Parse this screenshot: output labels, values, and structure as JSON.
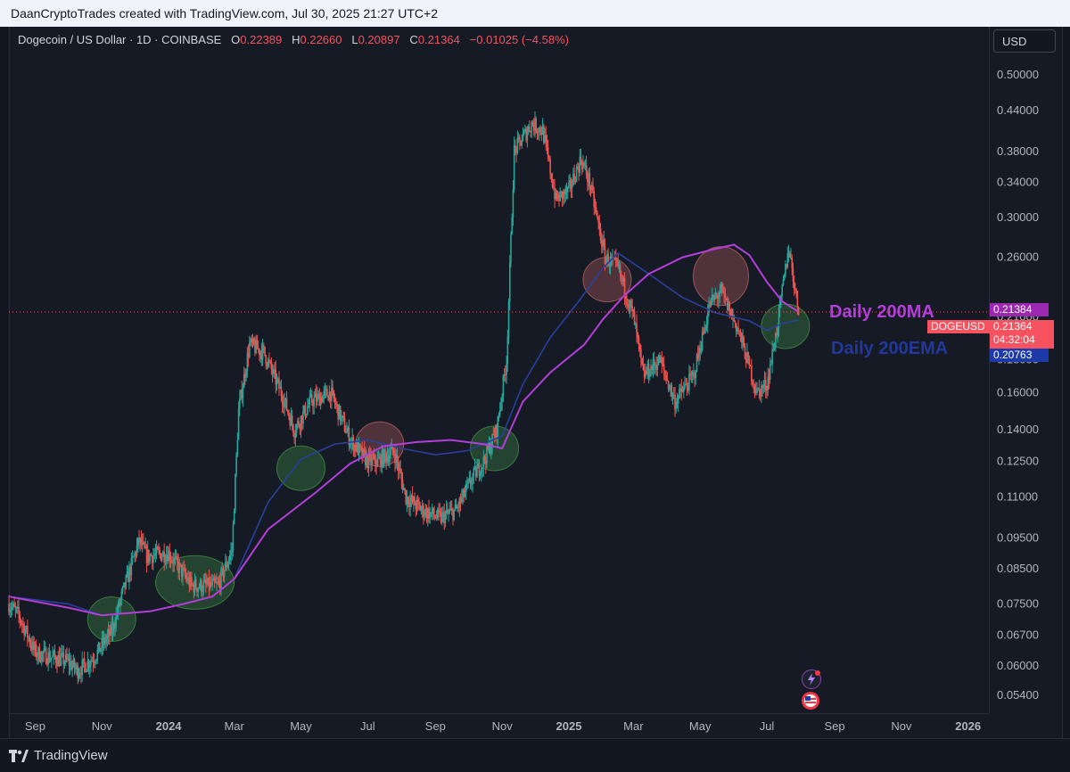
{
  "header": {
    "title": "DaanCryptoTrades created with TradingView.com, Jul 30, 2025 21:27 UTC+2"
  },
  "legend": {
    "symbol": "Dogecoin / US Dollar · 1D · COINBASE",
    "o_label": "O",
    "o_value": "0.22389",
    "h_label": "H",
    "h_value": "0.22660",
    "l_label": "L",
    "l_value": "0.20897",
    "c_label": "C",
    "c_value": "0.21364",
    "change": "−0.01025 (−4.58%)"
  },
  "currency_button": "USD",
  "annotations": {
    "ma_label": "Daily 200MA",
    "ema_label": "Daily 200EMA"
  },
  "price_tags": {
    "ma_value": "0.21384",
    "symbol_tag": "DOGEUSD",
    "last_price": "0.21364",
    "countdown": "04:32:04",
    "ema_value": "0.20763"
  },
  "branding": {
    "footer_logo": "TradingView"
  },
  "colors": {
    "up": "#26a69a",
    "down": "#ef5350",
    "ma": "#b33fd8",
    "ema": "#2a3f9e",
    "tag_ma": "#9c27b0",
    "tag_last": "#f7525f",
    "tag_ema": "#1c3aa9",
    "circle_green": "#4caf50",
    "circle_red": "#e57373"
  },
  "chart_data": {
    "type": "line",
    "title": "Dogecoin / US Dollar · 1D · COINBASE",
    "y_scale": "log",
    "ylim": [
      0.051,
      0.54
    ],
    "y_ticks": [
      0.054,
      0.06,
      0.067,
      0.075,
      0.085,
      0.095,
      0.11,
      0.125,
      0.14,
      0.16,
      0.18,
      0.21,
      0.26,
      0.3,
      0.34,
      0.38,
      0.44,
      0.5
    ],
    "y_tick_labels": [
      "0.05400",
      "0.06000",
      "0.06700",
      "0.07500",
      "0.08500",
      "0.09500",
      "0.11000",
      "0.12500",
      "0.14000",
      "0.16000",
      "0.18000",
      "0.21000",
      "0.26000",
      "0.30000",
      "0.34000",
      "0.38000",
      "0.44000",
      "0.50000"
    ],
    "x_ticks": [
      "2023-09-01",
      "2023-11-01",
      "2024-01-01",
      "2024-03-01",
      "2024-05-01",
      "2024-07-01",
      "2024-09-01",
      "2024-11-01",
      "2025-01-01",
      "2025-03-01",
      "2025-05-01",
      "2025-07-01",
      "2025-09-01",
      "2025-11-01",
      "2026-01-01"
    ],
    "x_tick_labels": [
      "Sep",
      "Nov",
      "2024",
      "Mar",
      "May",
      "Jul",
      "Sep",
      "Nov",
      "2025",
      "Mar",
      "May",
      "Jul",
      "Sep",
      "Nov",
      "2026"
    ],
    "x_range": [
      "2023-08-08",
      "2026-01-20"
    ],
    "series": [
      {
        "name": "DOGEUSD",
        "x": [
          "2023-08-08",
          "2023-08-17",
          "2023-09-01",
          "2023-09-15",
          "2023-10-01",
          "2023-10-10",
          "2023-10-25",
          "2023-11-10",
          "2023-11-20",
          "2023-12-05",
          "2023-12-12",
          "2024-01-01",
          "2024-01-22",
          "2024-02-15",
          "2024-02-28",
          "2024-03-05",
          "2024-03-15",
          "2024-03-28",
          "2024-04-13",
          "2024-04-25",
          "2024-05-10",
          "2024-05-28",
          "2024-06-15",
          "2024-07-01",
          "2024-07-10",
          "2024-07-25",
          "2024-08-05",
          "2024-08-20",
          "2024-09-05",
          "2024-09-20",
          "2024-10-05",
          "2024-10-15",
          "2024-10-27",
          "2024-11-05",
          "2024-11-12",
          "2024-11-28",
          "2024-12-08",
          "2024-12-20",
          "2025-01-01",
          "2025-01-12",
          "2025-01-20",
          "2025-02-03",
          "2025-02-15",
          "2025-03-01",
          "2025-03-10",
          "2025-03-25",
          "2025-04-08",
          "2025-04-25",
          "2025-05-10",
          "2025-05-20",
          "2025-06-05",
          "2025-06-22",
          "2025-07-01",
          "2025-07-10",
          "2025-07-21",
          "2025-07-30"
        ],
        "values": [
          0.075,
          0.072,
          0.063,
          0.062,
          0.061,
          0.059,
          0.062,
          0.068,
          0.078,
          0.094,
          0.089,
          0.09,
          0.08,
          0.08,
          0.091,
          0.15,
          0.19,
          0.185,
          0.16,
          0.14,
          0.155,
          0.16,
          0.135,
          0.125,
          0.125,
          0.13,
          0.11,
          0.105,
          0.102,
          0.105,
          0.118,
          0.125,
          0.14,
          0.18,
          0.38,
          0.42,
          0.41,
          0.32,
          0.33,
          0.37,
          0.34,
          0.26,
          0.25,
          0.21,
          0.17,
          0.18,
          0.155,
          0.17,
          0.22,
          0.23,
          0.2,
          0.16,
          0.165,
          0.2,
          0.27,
          0.214
        ]
      },
      {
        "name": "Daily 200MA",
        "x": [
          "2023-08-08",
          "2023-10-01",
          "2023-11-01",
          "2023-12-15",
          "2024-01-15",
          "2024-02-10",
          "2024-03-01",
          "2024-04-01",
          "2024-05-15",
          "2024-06-15",
          "2024-07-15",
          "2024-08-15",
          "2024-09-15",
          "2024-10-15",
          "2024-11-01",
          "2024-11-20",
          "2024-12-15",
          "2025-01-15",
          "2025-02-01",
          "2025-02-20",
          "2025-03-15",
          "2025-04-15",
          "2025-05-15",
          "2025-06-01",
          "2025-06-15",
          "2025-07-01",
          "2025-07-15",
          "2025-07-30"
        ],
        "values": [
          0.077,
          0.074,
          0.072,
          0.073,
          0.075,
          0.077,
          0.082,
          0.098,
          0.112,
          0.124,
          0.132,
          0.134,
          0.135,
          0.133,
          0.131,
          0.155,
          0.172,
          0.19,
          0.208,
          0.226,
          0.245,
          0.26,
          0.268,
          0.272,
          0.262,
          0.238,
          0.222,
          0.2138
        ]
      },
      {
        "name": "Daily 200EMA",
        "x": [
          "2023-08-08",
          "2023-10-01",
          "2023-11-01",
          "2023-12-15",
          "2024-01-15",
          "2024-02-10",
          "2024-03-01",
          "2024-04-01",
          "2024-05-01",
          "2024-06-01",
          "2024-07-01",
          "2024-08-01",
          "2024-09-01",
          "2024-10-01",
          "2024-11-01",
          "2024-11-20",
          "2024-12-15",
          "2025-01-10",
          "2025-02-01",
          "2025-02-15",
          "2025-03-15",
          "2025-04-15",
          "2025-05-15",
          "2025-06-15",
          "2025-07-01",
          "2025-07-15",
          "2025-07-30"
        ],
        "values": [
          0.077,
          0.075,
          0.072,
          0.073,
          0.075,
          0.077,
          0.082,
          0.108,
          0.126,
          0.133,
          0.135,
          0.131,
          0.128,
          0.13,
          0.137,
          0.165,
          0.195,
          0.222,
          0.25,
          0.264,
          0.245,
          0.225,
          0.213,
          0.207,
          0.2,
          0.205,
          0.2076
        ]
      }
    ],
    "highlight_circles": [
      {
        "date": "2023-11-10",
        "value": 0.071,
        "kind": "support"
      },
      {
        "date": "2024-01-25",
        "value": 0.081,
        "kind": "support"
      },
      {
        "date": "2024-05-01",
        "value": 0.122,
        "kind": "support"
      },
      {
        "date": "2024-07-12",
        "value": 0.133,
        "kind": "resistance"
      },
      {
        "date": "2024-10-25",
        "value": 0.131,
        "kind": "support"
      },
      {
        "date": "2025-02-05",
        "value": 0.24,
        "kind": "resistance"
      },
      {
        "date": "2025-05-20",
        "value": 0.243,
        "kind": "resistance"
      },
      {
        "date": "2025-07-18",
        "value": 0.203,
        "kind": "support"
      }
    ]
  }
}
